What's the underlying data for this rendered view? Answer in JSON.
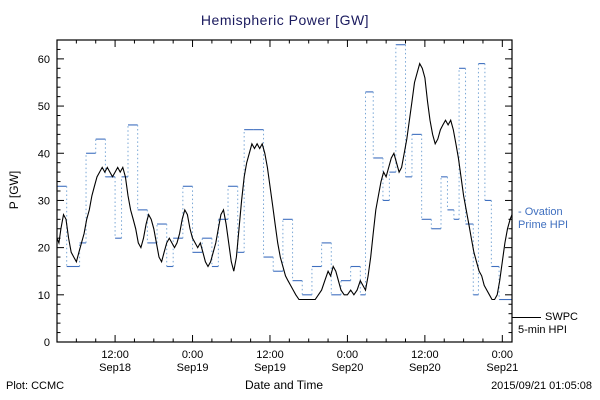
{
  "title": "Hemispheric Power [GW]",
  "footer": {
    "left": "Plot: CCMC",
    "right": "2015/09/21 01:05:08"
  },
  "legend": {
    "ovation_line1": "- Ovation",
    "ovation_line2": "Prime HPI",
    "swpc_line1": "SWPC",
    "swpc_line2": "5-min HPI"
  },
  "colors": {
    "title": "#1a1a5e",
    "ovation": "#3f6fbf",
    "ovation_dotted": "#7aa7d6",
    "swpc": "#000000",
    "axis": "#000000"
  },
  "chart_data": {
    "type": "line",
    "title": "Hemispheric Power [GW]",
    "xlabel": "Date and Time",
    "ylabel": "P [GW]",
    "ylim": [
      0,
      64
    ],
    "yticks": [
      0,
      10,
      20,
      30,
      40,
      50,
      60
    ],
    "x_hours_range": [
      3,
      73.5
    ],
    "x_minor_step_hours": 3,
    "y_minor_step": 2,
    "grid": false,
    "legend_position": "right-outside",
    "xticks": [
      {
        "t": 12,
        "time": "12:00",
        "date": "Sep18"
      },
      {
        "t": 24,
        "time": "0:00",
        "date": "Sep19"
      },
      {
        "t": 36,
        "time": "12:00",
        "date": "Sep19"
      },
      {
        "t": 48,
        "time": "0:00",
        "date": "Sep20"
      },
      {
        "t": 60,
        "time": "12:00",
        "date": "Sep20"
      },
      {
        "t": 72,
        "time": "0:00",
        "date": "Sep21"
      }
    ],
    "series": [
      {
        "name": "Ovation Prime HPI",
        "color": "#3f6fbf",
        "dotted_color": "#7aa7d6",
        "style": "step-with-dotted-verticals",
        "points": [
          [
            3,
            33
          ],
          [
            4.5,
            16
          ],
          [
            6.5,
            21
          ],
          [
            7.5,
            40
          ],
          [
            9,
            43
          ],
          [
            10.5,
            35
          ],
          [
            12,
            22
          ],
          [
            13,
            35
          ],
          [
            14,
            46
          ],
          [
            15.5,
            28
          ],
          [
            17,
            21
          ],
          [
            18.5,
            25
          ],
          [
            20,
            16
          ],
          [
            21,
            22
          ],
          [
            22.5,
            33
          ],
          [
            24,
            19
          ],
          [
            25.5,
            22
          ],
          [
            27,
            16
          ],
          [
            28,
            26
          ],
          [
            29.5,
            33
          ],
          [
            31,
            19
          ],
          [
            32,
            45
          ],
          [
            33.5,
            45
          ],
          [
            35,
            18
          ],
          [
            36.5,
            15
          ],
          [
            38,
            26
          ],
          [
            39.5,
            13
          ],
          [
            41,
            10
          ],
          [
            42.5,
            16
          ],
          [
            44,
            21
          ],
          [
            45.5,
            10
          ],
          [
            47,
            13
          ],
          [
            48.5,
            16
          ],
          [
            50,
            10
          ],
          [
            50.8,
            53
          ],
          [
            52,
            39
          ],
          [
            53.5,
            30
          ],
          [
            54.5,
            36
          ],
          [
            55.5,
            63
          ],
          [
            57,
            35
          ],
          [
            58,
            44
          ],
          [
            59.5,
            26
          ],
          [
            61,
            24
          ],
          [
            62.5,
            35
          ],
          [
            63.5,
            28
          ],
          [
            64.5,
            26
          ],
          [
            65.3,
            58
          ],
          [
            66.3,
            25
          ],
          [
            67.5,
            10
          ],
          [
            68.3,
            59
          ],
          [
            69.3,
            30
          ],
          [
            70.3,
            16
          ],
          [
            71.5,
            9
          ],
          [
            73.5,
            9
          ]
        ]
      },
      {
        "name": "SWPC 5-min HPI",
        "color": "#000000",
        "style": "solid",
        "points": [
          [
            3.0,
            22
          ],
          [
            3.3,
            21
          ],
          [
            3.6,
            24
          ],
          [
            4.0,
            27
          ],
          [
            4.4,
            26
          ],
          [
            4.8,
            22
          ],
          [
            5.2,
            19
          ],
          [
            5.6,
            18
          ],
          [
            6.0,
            17
          ],
          [
            6.4,
            19
          ],
          [
            6.8,
            21
          ],
          [
            7.2,
            23
          ],
          [
            7.6,
            26
          ],
          [
            8.0,
            28
          ],
          [
            8.4,
            31
          ],
          [
            8.8,
            33
          ],
          [
            9.2,
            35
          ],
          [
            9.6,
            36
          ],
          [
            10.0,
            37
          ],
          [
            10.4,
            36
          ],
          [
            10.8,
            37
          ],
          [
            11.2,
            36
          ],
          [
            11.6,
            35
          ],
          [
            12.0,
            36
          ],
          [
            12.4,
            37
          ],
          [
            12.8,
            36
          ],
          [
            13.2,
            37
          ],
          [
            13.6,
            35
          ],
          [
            14.0,
            31
          ],
          [
            14.4,
            28
          ],
          [
            14.8,
            26
          ],
          [
            15.2,
            24
          ],
          [
            15.6,
            21
          ],
          [
            16.0,
            20
          ],
          [
            16.4,
            22
          ],
          [
            16.8,
            25
          ],
          [
            17.2,
            27
          ],
          [
            17.6,
            26
          ],
          [
            18.0,
            24
          ],
          [
            18.4,
            21
          ],
          [
            18.8,
            18
          ],
          [
            19.2,
            17
          ],
          [
            19.6,
            19
          ],
          [
            20.0,
            21
          ],
          [
            20.4,
            22
          ],
          [
            20.8,
            21
          ],
          [
            21.2,
            20
          ],
          [
            21.6,
            21
          ],
          [
            22.0,
            23
          ],
          [
            22.4,
            26
          ],
          [
            22.8,
            28
          ],
          [
            23.2,
            27
          ],
          [
            23.6,
            24
          ],
          [
            24.0,
            22
          ],
          [
            24.4,
            21
          ],
          [
            24.8,
            20
          ],
          [
            25.2,
            21
          ],
          [
            25.6,
            19
          ],
          [
            26.0,
            17
          ],
          [
            26.4,
            16
          ],
          [
            26.8,
            17
          ],
          [
            27.2,
            19
          ],
          [
            27.6,
            21
          ],
          [
            28.0,
            24
          ],
          [
            28.4,
            27
          ],
          [
            28.8,
            28
          ],
          [
            29.2,
            25
          ],
          [
            29.6,
            21
          ],
          [
            30.0,
            17
          ],
          [
            30.4,
            15
          ],
          [
            30.8,
            18
          ],
          [
            31.2,
            24
          ],
          [
            31.6,
            30
          ],
          [
            32.0,
            35
          ],
          [
            32.4,
            38
          ],
          [
            32.8,
            40
          ],
          [
            33.2,
            42
          ],
          [
            33.6,
            41
          ],
          [
            34.0,
            42
          ],
          [
            34.4,
            41
          ],
          [
            34.8,
            42
          ],
          [
            35.2,
            40
          ],
          [
            35.6,
            37
          ],
          [
            36.0,
            33
          ],
          [
            36.4,
            29
          ],
          [
            36.8,
            25
          ],
          [
            37.2,
            21
          ],
          [
            37.6,
            18
          ],
          [
            38.0,
            16
          ],
          [
            38.4,
            14
          ],
          [
            38.8,
            13
          ],
          [
            39.2,
            12
          ],
          [
            39.6,
            11
          ],
          [
            40.0,
            10
          ],
          [
            40.5,
            9
          ],
          [
            41.0,
            9
          ],
          [
            41.5,
            9
          ],
          [
            42.0,
            9
          ],
          [
            42.5,
            9
          ],
          [
            43.0,
            9
          ],
          [
            43.5,
            10
          ],
          [
            44.0,
            11
          ],
          [
            44.5,
            13
          ],
          [
            45.0,
            15
          ],
          [
            45.4,
            14
          ],
          [
            45.8,
            16
          ],
          [
            46.2,
            15
          ],
          [
            46.6,
            13
          ],
          [
            47.0,
            11
          ],
          [
            47.5,
            10
          ],
          [
            48.0,
            10
          ],
          [
            48.5,
            11
          ],
          [
            49.0,
            10
          ],
          [
            49.5,
            11
          ],
          [
            50.0,
            13
          ],
          [
            50.4,
            12
          ],
          [
            50.8,
            11
          ],
          [
            51.2,
            14
          ],
          [
            51.6,
            18
          ],
          [
            52.0,
            23
          ],
          [
            52.4,
            28
          ],
          [
            52.8,
            31
          ],
          [
            53.2,
            34
          ],
          [
            53.6,
            36
          ],
          [
            54.0,
            35
          ],
          [
            54.4,
            37
          ],
          [
            54.8,
            39
          ],
          [
            55.2,
            40
          ],
          [
            55.6,
            38
          ],
          [
            56.0,
            36
          ],
          [
            56.4,
            37
          ],
          [
            56.8,
            40
          ],
          [
            57.2,
            43
          ],
          [
            57.6,
            47
          ],
          [
            58.0,
            51
          ],
          [
            58.4,
            55
          ],
          [
            58.8,
            57
          ],
          [
            59.2,
            59
          ],
          [
            59.6,
            58
          ],
          [
            60.0,
            56
          ],
          [
            60.4,
            51
          ],
          [
            60.8,
            47
          ],
          [
            61.2,
            44
          ],
          [
            61.6,
            42
          ],
          [
            62.0,
            43
          ],
          [
            62.4,
            45
          ],
          [
            62.8,
            46
          ],
          [
            63.2,
            47
          ],
          [
            63.6,
            46
          ],
          [
            64.0,
            47
          ],
          [
            64.4,
            45
          ],
          [
            64.8,
            42
          ],
          [
            65.2,
            39
          ],
          [
            65.6,
            35
          ],
          [
            66.0,
            31
          ],
          [
            66.4,
            28
          ],
          [
            66.8,
            25
          ],
          [
            67.2,
            22
          ],
          [
            67.6,
            19
          ],
          [
            68.0,
            17
          ],
          [
            68.4,
            15
          ],
          [
            68.8,
            14
          ],
          [
            69.2,
            12
          ],
          [
            69.6,
            11
          ],
          [
            70.0,
            10
          ],
          [
            70.4,
            9
          ],
          [
            70.8,
            9
          ],
          [
            71.2,
            10
          ],
          [
            71.6,
            13
          ],
          [
            72.0,
            17
          ],
          [
            72.4,
            21
          ],
          [
            72.8,
            24
          ],
          [
            73.2,
            26
          ],
          [
            73.5,
            27
          ]
        ]
      }
    ]
  }
}
